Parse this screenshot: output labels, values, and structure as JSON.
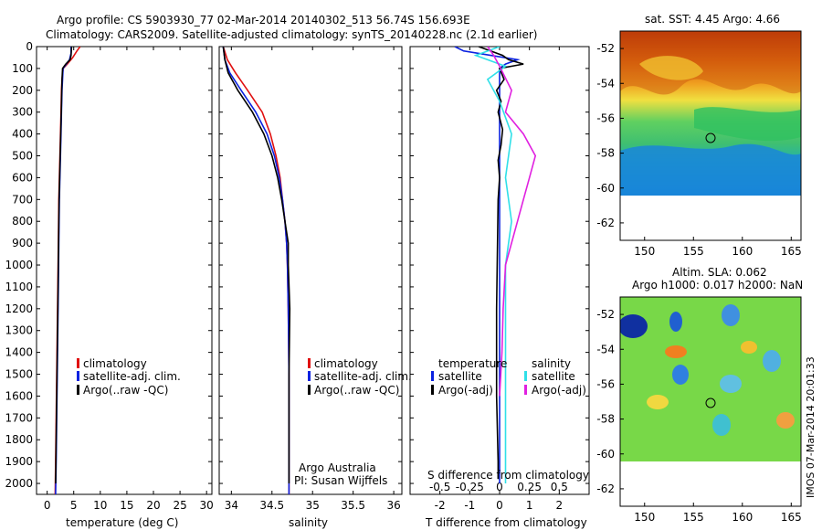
{
  "header": {
    "line1": "Argo profile: CS 5903930_77 02-Mar-2014 20140302_513 56.74S 156.693E",
    "line2": "Climatology: CARS2009. Satellite-adjusted climatology: synTS_20140228.nc (2.1d earlier)"
  },
  "side_stamp": "IMOS 07-Mar-2014 20:01:33",
  "colors": {
    "climatology": "#e01010",
    "satellite": "#0b22e0",
    "argo": "#000000",
    "satellite_salinity": "#30e0e8",
    "argo_salinity": "#e020e0"
  },
  "chart_data": [
    {
      "type": "line",
      "xlabel": "temperature (deg C)",
      "xlim": [
        -2,
        31
      ],
      "ylim": [
        2050,
        0
      ],
      "x_ticks": [
        "0",
        "5",
        "10",
        "15",
        "20",
        "25",
        "30"
      ],
      "y_ticks": [
        "0",
        "100",
        "200",
        "300",
        "400",
        "500",
        "600",
        "700",
        "800",
        "900",
        "1000",
        "1100",
        "1200",
        "1300",
        "1400",
        "1500",
        "1600",
        "1700",
        "1800",
        "1900",
        "2000"
      ],
      "legend": [
        "climatology",
        "satellite-adj. clim.",
        "Argo(..raw -QC)"
      ],
      "series": [
        {
          "name": "climatology",
          "color_key": "climatology",
          "points": [
            [
              6.2,
              0
            ],
            [
              5.6,
              20
            ],
            [
              4.8,
              50
            ],
            [
              3.8,
              80
            ],
            [
              3.0,
              100
            ],
            [
              2.8,
              150
            ],
            [
              2.7,
              200
            ],
            [
              2.6,
              300
            ],
            [
              2.5,
              400
            ],
            [
              2.4,
              500
            ],
            [
              2.3,
              600
            ],
            [
              2.2,
              700
            ],
            [
              2.1,
              900
            ],
            [
              2.0,
              1100
            ],
            [
              1.9,
              1300
            ],
            [
              1.8,
              1500
            ],
            [
              1.7,
              1700
            ],
            [
              1.6,
              1900
            ],
            [
              1.5,
              2050
            ]
          ]
        },
        {
          "name": "satellite-adj. clim.",
          "color_key": "satellite",
          "points": [
            [
              4.5,
              0
            ],
            [
              4.5,
              30
            ],
            [
              4.2,
              60
            ],
            [
              3.6,
              80
            ],
            [
              3.0,
              100
            ],
            [
              2.9,
              150
            ],
            [
              2.8,
              200
            ],
            [
              2.7,
              300
            ],
            [
              2.6,
              400
            ],
            [
              2.5,
              500
            ],
            [
              2.4,
              600
            ],
            [
              2.3,
              700
            ],
            [
              2.2,
              900
            ],
            [
              2.1,
              1100
            ],
            [
              2.0,
              1300
            ],
            [
              1.9,
              1500
            ],
            [
              1.8,
              1700
            ],
            [
              1.7,
              1900
            ],
            [
              1.6,
              2050
            ]
          ]
        },
        {
          "name": "Argo(..raw -QC)",
          "color_key": "argo",
          "points": [
            [
              4.6,
              0
            ],
            [
              4.5,
              40
            ],
            [
              4.3,
              60
            ],
            [
              3.5,
              80
            ],
            [
              2.9,
              100
            ],
            [
              2.8,
              150
            ],
            [
              2.75,
              200
            ],
            [
              2.65,
              300
            ],
            [
              2.55,
              400
            ],
            [
              2.45,
              500
            ],
            [
              2.35,
              600
            ],
            [
              2.25,
              700
            ],
            [
              2.15,
              900
            ],
            [
              2.05,
              1100
            ],
            [
              1.95,
              1300
            ],
            [
              1.85,
              1500
            ],
            [
              1.75,
              1700
            ],
            [
              1.65,
              1900
            ],
            [
              1.6,
              2000
            ]
          ]
        }
      ]
    },
    {
      "type": "line",
      "xlabel": "salinity",
      "xlim": [
        33.85,
        36.1
      ],
      "ylim": [
        2050,
        0
      ],
      "x_ticks": [
        "34",
        "34.5",
        "35",
        "35.5",
        "36"
      ],
      "legend": [
        "climatology",
        "satellite-adj. clim.",
        "Argo(..raw -QC)"
      ],
      "annotations": [
        "Argo Australia",
        "PI: Susan Wijffels"
      ],
      "series": [
        {
          "name": "climatology",
          "color_key": "climatology",
          "points": [
            [
              33.9,
              0
            ],
            [
              33.95,
              60
            ],
            [
              34.05,
              120
            ],
            [
              34.2,
              200
            ],
            [
              34.38,
              300
            ],
            [
              34.48,
              400
            ],
            [
              34.55,
              500
            ],
            [
              34.6,
              600
            ],
            [
              34.63,
              700
            ],
            [
              34.66,
              800
            ],
            [
              34.68,
              900
            ],
            [
              34.69,
              1000
            ],
            [
              34.7,
              1200
            ],
            [
              34.71,
              1500
            ],
            [
              34.71,
              1800
            ],
            [
              34.71,
              2050
            ]
          ]
        },
        {
          "name": "satellite-adj. clim.",
          "color_key": "satellite",
          "points": [
            [
              33.9,
              0
            ],
            [
              33.92,
              60
            ],
            [
              33.98,
              120
            ],
            [
              34.12,
              200
            ],
            [
              34.3,
              300
            ],
            [
              34.44,
              400
            ],
            [
              34.53,
              500
            ],
            [
              34.59,
              600
            ],
            [
              34.63,
              700
            ],
            [
              34.66,
              800
            ],
            [
              34.68,
              900
            ],
            [
              34.69,
              1000
            ],
            [
              34.7,
              1200
            ],
            [
              34.71,
              1500
            ],
            [
              34.71,
              1800
            ],
            [
              34.71,
              2050
            ]
          ]
        },
        {
          "name": "Argo(..raw -QC)",
          "color_key": "argo",
          "points": [
            [
              33.9,
              0
            ],
            [
              33.92,
              60
            ],
            [
              33.96,
              120
            ],
            [
              34.08,
              200
            ],
            [
              34.26,
              300
            ],
            [
              34.4,
              400
            ],
            [
              34.5,
              500
            ],
            [
              34.57,
              600
            ],
            [
              34.62,
              700
            ],
            [
              34.66,
              800
            ],
            [
              34.7,
              900
            ],
            [
              34.7,
              1000
            ],
            [
              34.72,
              1200
            ],
            [
              34.71,
              1500
            ],
            [
              34.71,
              1800
            ],
            [
              34.71,
              2000
            ]
          ]
        }
      ]
    },
    {
      "type": "line",
      "xlabel": "T difference from climatology",
      "xlabel_top": "S difference from climatology",
      "xlim": [
        -3,
        3
      ],
      "ylim": [
        2050,
        0
      ],
      "x_ticks": [
        "-2",
        "-1",
        "0",
        "1",
        "2"
      ],
      "x_ticks_top": [
        "-0.5",
        "-0.25",
        "0",
        "0.25",
        "0.5"
      ],
      "legend_left_title": "temperature",
      "legend_right_title": "salinity",
      "legend": [
        "satellite",
        "Argo(-adj)",
        "satellite",
        "Argo(-adj)"
      ],
      "series": [
        {
          "name": "satellite",
          "color_key": "satellite",
          "quantity": "temperature",
          "points": [
            [
              -1.5,
              0
            ],
            [
              -1.2,
              20
            ],
            [
              -0.3,
              40
            ],
            [
              0.6,
              60
            ],
            [
              0.2,
              80
            ],
            [
              0.0,
              100
            ],
            [
              0.0,
              150
            ],
            [
              0.0,
              400
            ],
            [
              0.0,
              800
            ],
            [
              0.0,
              1200
            ],
            [
              0.0,
              1600
            ],
            [
              0.0,
              2000
            ]
          ]
        },
        {
          "name": "Argo(-adj)",
          "color_key": "argo",
          "quantity": "temperature",
          "points": [
            [
              -0.7,
              0
            ],
            [
              -0.3,
              20
            ],
            [
              0.1,
              40
            ],
            [
              0.3,
              60
            ],
            [
              0.8,
              80
            ],
            [
              0.0,
              100
            ],
            [
              0.15,
              150
            ],
            [
              -0.1,
              200
            ],
            [
              0.05,
              250
            ],
            [
              -0.05,
              300
            ],
            [
              0.1,
              380
            ],
            [
              0.05,
              450
            ],
            [
              -0.05,
              520
            ],
            [
              0.0,
              600
            ],
            [
              -0.05,
              700
            ],
            [
              -0.1,
              1200
            ],
            [
              -0.1,
              1600
            ],
            [
              -0.05,
              1900
            ],
            [
              -0.05,
              1980
            ]
          ]
        },
        {
          "name": "satellite",
          "color_key": "satellite_salinity",
          "quantity": "salinity",
          "points": [
            [
              0.0,
              0
            ],
            [
              -0.2,
              40
            ],
            [
              0.05,
              90
            ],
            [
              -0.1,
              150
            ],
            [
              0.0,
              250
            ],
            [
              0.1,
              400
            ],
            [
              0.05,
              600
            ],
            [
              0.1,
              800
            ],
            [
              0.05,
              1000
            ],
            [
              0.05,
              1200
            ],
            [
              0.05,
              1500
            ],
            [
              0.05,
              1800
            ],
            [
              0.05,
              2000
            ]
          ]
        },
        {
          "name": "Argo(-adj)",
          "color_key": "argo_salinity",
          "quantity": "salinity",
          "points": [
            [
              -0.1,
              0
            ],
            [
              -0.05,
              40
            ],
            [
              0.0,
              90
            ],
            [
              0.1,
              200
            ],
            [
              0.05,
              300
            ],
            [
              0.2,
              400
            ],
            [
              0.3,
              500
            ],
            [
              0.25,
              600
            ],
            [
              0.2,
              700
            ],
            [
              0.15,
              800
            ],
            [
              0.05,
              1000
            ],
            [
              0.03,
              1200
            ],
            [
              0.02,
              1400
            ],
            [
              0.0,
              1600
            ]
          ]
        }
      ]
    },
    {
      "type": "heatmap",
      "title": "sat. SST: 4.45  Argo: 4.66",
      "xlim": [
        147.5,
        166
      ],
      "ylim": [
        -63,
        -51
      ],
      "x_ticks": [
        "150",
        "155",
        "160",
        "165"
      ],
      "y_ticks": [
        "-52",
        "-54",
        "-56",
        "-58",
        "-60",
        "-62"
      ],
      "argo_position": [
        156.693,
        -56.74
      ]
    },
    {
      "type": "heatmap",
      "title": "Altim. SLA: 0.062",
      "subtitle": "Argo h1000: 0.017 h2000: NaN",
      "xlim": [
        147.5,
        166
      ],
      "ylim": [
        -63,
        -51
      ],
      "x_ticks": [
        "150",
        "155",
        "160",
        "165"
      ],
      "y_ticks": [
        "-52",
        "-54",
        "-56",
        "-58",
        "-60",
        "-62"
      ],
      "argo_position": [
        156.693,
        -56.74
      ]
    }
  ]
}
